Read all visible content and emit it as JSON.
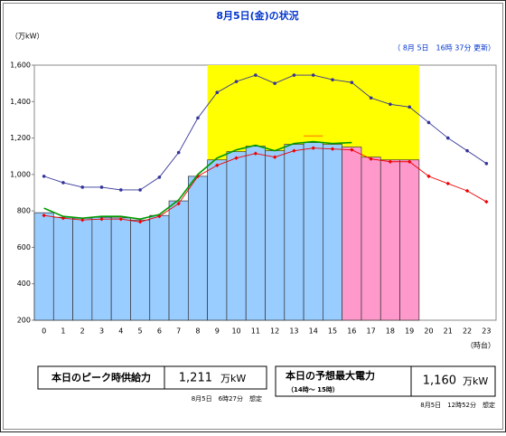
{
  "chart_data": {
    "type": "bar",
    "title": "8月5日(金)の状況",
    "updated": "（ 8月 5日　16時 37分 更新）",
    "y_label": "（万kW）",
    "x_label": "（時台）",
    "categories": [
      "0",
      "1",
      "2",
      "3",
      "4",
      "5",
      "6",
      "7",
      "8",
      "9",
      "10",
      "11",
      "12",
      "13",
      "14",
      "15",
      "16",
      "17",
      "18",
      "19",
      "20",
      "21",
      "22",
      "23"
    ],
    "bars": [
      {
        "color": "#99ccff",
        "values": [
          790,
          765,
          760,
          765,
          762,
          750,
          775,
          855,
          990,
          1080,
          1125,
          1155,
          1130,
          1165,
          1175,
          1165,
          null,
          null,
          null,
          null,
          null,
          null,
          null,
          null
        ]
      },
      {
        "color": "#ff99cc",
        "values": [
          null,
          null,
          null,
          null,
          null,
          null,
          null,
          null,
          null,
          null,
          null,
          null,
          null,
          null,
          null,
          null,
          1150,
          1095,
          1080,
          1080,
          null,
          null,
          null,
          null
        ]
      }
    ],
    "series": [
      {
        "color": "#333399",
        "marker": "circle",
        "values": [
          990,
          955,
          930,
          930,
          915,
          915,
          985,
          1120,
          1310,
          1450,
          1510,
          1545,
          1500,
          1545,
          1545,
          1520,
          1505,
          1420,
          1385,
          1370,
          1285,
          1200,
          1130,
          1060
        ]
      },
      {
        "color": "#ee0000",
        "marker": "diamond",
        "values": [
          775,
          760,
          750,
          755,
          755,
          740,
          770,
          840,
          990,
          1050,
          1090,
          1115,
          1095,
          1130,
          1145,
          1140,
          1135,
          1085,
          1070,
          1070,
          990,
          950,
          910,
          850
        ]
      },
      {
        "color": "#009900",
        "marker": "none",
        "values": [
          815,
          770,
          760,
          770,
          770,
          755,
          780,
          860,
          1000,
          1090,
          1135,
          1160,
          1130,
          1170,
          1180,
          1170,
          1175,
          null,
          null,
          null,
          null,
          null,
          null,
          null
        ]
      }
    ],
    "highlight": {
      "x": [
        8.5,
        19.5
      ],
      "y": [
        1080,
        1600
      ],
      "color": "#ffff00"
    },
    "ylim": [
      200,
      1600
    ],
    "yticks": [
      200,
      400,
      600,
      800,
      {
        "value": 1000,
        "label": "1,000"
      },
      {
        "value": 1200,
        "label": "1,200"
      },
      {
        "value": 1400,
        "label": "1,400"
      },
      {
        "value": 1600,
        "label": "1,600"
      }
    ],
    "grid": false
  },
  "supply_box": {
    "label": "本日のピーク時供給力",
    "value": 1211,
    "value_label": "1,211",
    "unit": "万kW",
    "note": "8月5日　6時27分　想定",
    "marker_color": "#ff9900"
  },
  "demand_box": {
    "label": "本日の予想最大電力",
    "sub": "（14時～ 15時）",
    "value": 1160,
    "value_label": "1,160",
    "unit": "万kW",
    "note": "8月5日　12時52分　想定"
  }
}
